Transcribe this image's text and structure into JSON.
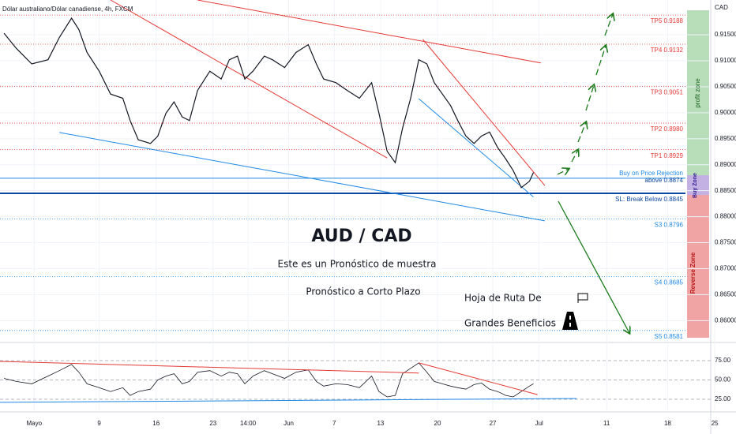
{
  "header": "Dólar australiano/Dólar canadiense, 4h, FXCM",
  "currency": "CAD",
  "chart_data": {
    "type": "line",
    "ylim": [
      0.8561,
      0.9217
    ],
    "yticks": [
      {
        "value": 0.86,
        "label": "0.86000"
      },
      {
        "value": 0.865,
        "label": "0.86500"
      },
      {
        "value": 0.87,
        "label": "0.87000"
      },
      {
        "value": 0.875,
        "label": "0.87500"
      },
      {
        "value": 0.88,
        "label": "0.88000"
      },
      {
        "value": 0.885,
        "label": "0.88500"
      },
      {
        "value": 0.89,
        "label": "0.89000"
      },
      {
        "value": 0.895,
        "label": "0.89500"
      },
      {
        "value": 0.9,
        "label": "0.90000"
      },
      {
        "value": 0.905,
        "label": "0.90500"
      },
      {
        "value": 0.91,
        "label": "0.91000"
      },
      {
        "value": 0.915,
        "label": "0.91500"
      }
    ],
    "xlim": [
      -3.2,
      84.2
    ],
    "xticks": [
      {
        "value": 1,
        "label": "Mayo"
      },
      9,
      16,
      23,
      {
        "value": 27.3,
        "label": "14:00"
      },
      {
        "value": 32.3,
        "label": "Jun"
      },
      {
        "value": 37.9,
        "label": "7"
      },
      {
        "value": 43.6,
        "label": "13"
      },
      {
        "value": 50.6,
        "label": "20"
      },
      {
        "value": 57.4,
        "label": "27"
      },
      {
        "value": 63.1,
        "label": "Jul"
      },
      {
        "value": 71.4,
        "label": "11"
      },
      {
        "value": 78.9,
        "label": "18"
      },
      {
        "value": 84.7,
        "label": "25"
      }
    ],
    "x": [
      -2.7,
      -1.2,
      0.7,
      2.7,
      4.1,
      5.6,
      6.5,
      7.5,
      9.0,
      10.4,
      11.9,
      12.8,
      13.8,
      15.3,
      16.2,
      17.2,
      18.2,
      19.2,
      20.1,
      21.1,
      22.6,
      24.0,
      25.0,
      26.0,
      26.9,
      27.9,
      29.3,
      30.3,
      31.8,
      33.2,
      34.7,
      35.7,
      36.6,
      38.1,
      39.5,
      41.0,
      42.5,
      43.4,
      44.4,
      45.4,
      46.3,
      47.3,
      48.3,
      49.3,
      50.2,
      51.2,
      52.2,
      53.1,
      54.1,
      55.1,
      56.0,
      57.0,
      58.0,
      59.0,
      59.9,
      60.9,
      61.9,
      62.4
    ],
    "series": [
      {
        "color": "#131722",
        "values": [
          0.9153,
          0.9124,
          0.9094,
          0.9102,
          0.9145,
          0.9182,
          0.916,
          0.9116,
          0.908,
          0.9036,
          0.9028,
          0.8985,
          0.8948,
          0.8941,
          0.8955,
          0.8999,
          0.9021,
          0.8992,
          0.8985,
          0.9043,
          0.908,
          0.9065,
          0.9102,
          0.9109,
          0.9065,
          0.908,
          0.9109,
          0.9102,
          0.9087,
          0.9116,
          0.9131,
          0.9094,
          0.9065,
          0.9058,
          0.9043,
          0.9028,
          0.9058,
          0.8999,
          0.8926,
          0.8904,
          0.897,
          0.9028,
          0.9102,
          0.9094,
          0.9058,
          0.9036,
          0.9014,
          0.8985,
          0.8955,
          0.8941,
          0.8955,
          0.8963,
          0.8933,
          0.8911,
          0.8889,
          0.8856,
          0.8868,
          0.8885
        ]
      }
    ],
    "levels": [
      {
        "label": "TP5 0.9188",
        "value": 0.9188,
        "color": "#e53935"
      },
      {
        "label": "TP4 0.9132",
        "value": 0.9132,
        "color": "#e53935"
      },
      {
        "label": "TP3 0.9051",
        "value": 0.9051,
        "color": "#e53935"
      },
      {
        "label": "TP2 0.8980",
        "value": 0.898,
        "color": "#e53935"
      },
      {
        "label": "TP1 0.8929",
        "value": 0.8929,
        "color": "#e53935"
      },
      {
        "label": "SL: Break Below 0.8845",
        "value": 0.8845,
        "color": "#0d47a1"
      },
      {
        "label": "S3 0.8796",
        "value": 0.8796,
        "color": "#1e88e5"
      },
      {
        "label": "S4 0.8685",
        "value": 0.8685,
        "color": "#1e88e5"
      },
      {
        "label": "S5 0.8581",
        "value": 0.8581,
        "color": "#1e88e5"
      }
    ],
    "buy_level": {
      "labels": [
        "Buy on Price Rejection",
        "above 0.8874"
      ],
      "value": 0.8874,
      "color": "#1e88e5"
    },
    "trendlines": [
      {
        "color": "#e53935",
        "x": [
          10.4,
          44.4
        ],
        "values": [
          0.9217,
          0.8913
        ]
      },
      {
        "color": "#e53935",
        "x": [
          21.1,
          63.3
        ],
        "values": [
          0.9217,
          0.9096
        ]
      },
      {
        "color": "#e53935",
        "x": [
          48.8,
          63.8
        ],
        "values": [
          0.9141,
          0.886
        ]
      },
      {
        "color": "#1e88e5",
        "x": [
          4.1,
          63.8
        ],
        "values": [
          0.8962,
          0.8792
        ]
      },
      {
        "color": "#1e88e5",
        "x": [
          48.3,
          62.4
        ],
        "values": [
          0.9027,
          0.8838
        ]
      }
    ],
    "title": "AUD / CAD",
    "subtitle": "Este es un Pronóstico de muestra",
    "annotations": [
      "Pronóstico a Corto Plazo",
      "Hoja de Ruta De",
      "Grandes Beneficios"
    ],
    "zones": [
      "profit zone",
      "Buy Zone",
      "Reverse Zone"
    ],
    "rsi": {
      "color": "#131722",
      "ylim": [
        10.7,
        96.4
      ],
      "yticks": [
        {
          "value": 75,
          "label": "75.00"
        },
        {
          "value": 50,
          "label": "50.00"
        },
        {
          "value": 25,
          "label": "25.00"
        }
      ],
      "values": [
        52,
        48,
        45,
        55,
        62,
        70,
        60,
        45,
        40,
        35,
        40,
        30,
        35,
        38,
        50,
        55,
        58,
        45,
        48,
        60,
        62,
        55,
        60,
        58,
        45,
        55,
        62,
        58,
        52,
        60,
        63,
        48,
        42,
        45,
        44,
        40,
        55,
        35,
        28,
        30,
        58,
        65,
        72,
        60,
        48,
        45,
        42,
        40,
        38,
        44,
        46,
        38,
        35,
        30,
        28,
        35,
        42,
        45
      ],
      "trendlines": [
        {
          "color": "#e53935",
          "x": [
            -3.2,
            48.3
          ],
          "values": [
            74,
            59
          ]
        },
        {
          "color": "#e53935",
          "x": [
            48.3,
            62.9
          ],
          "values": [
            72,
            31
          ]
        },
        {
          "color": "#1e88e5",
          "x": [
            -3.2,
            67.7
          ],
          "values": [
            21,
            26
          ]
        }
      ]
    }
  }
}
